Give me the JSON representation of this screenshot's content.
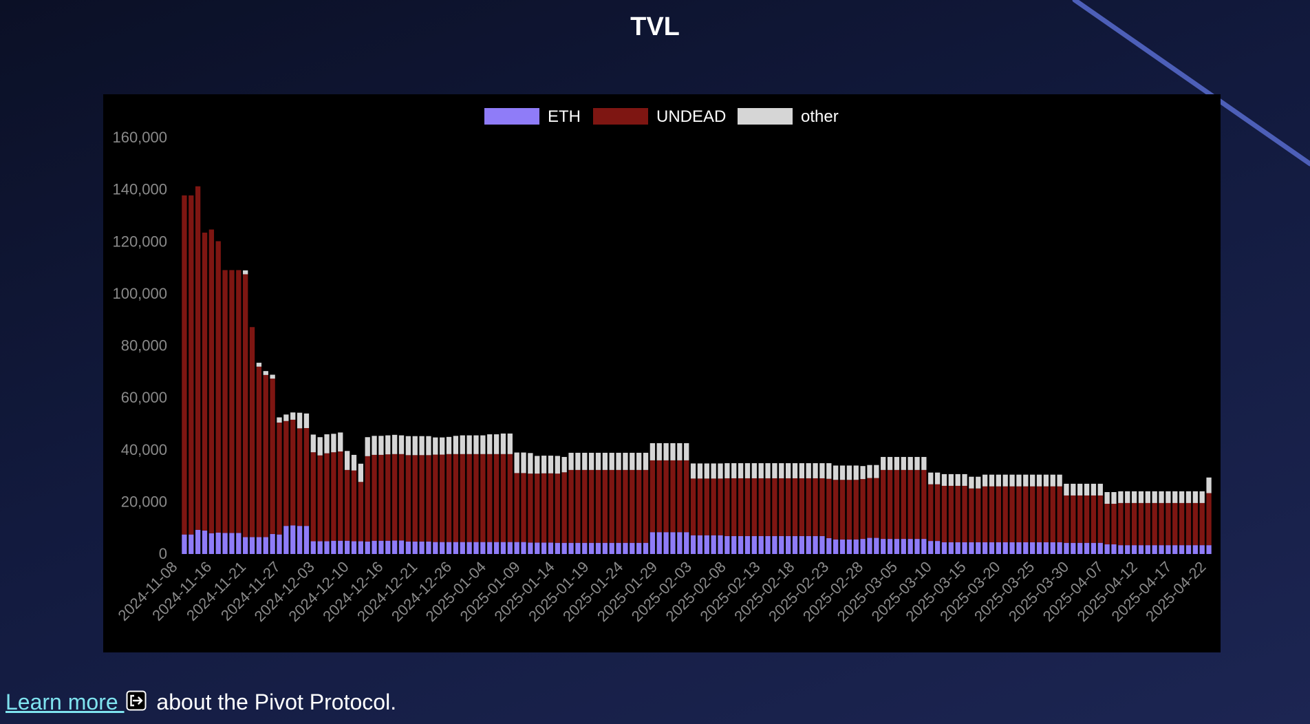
{
  "page": {
    "title": "TVL",
    "footer": {
      "link_text": "Learn more ",
      "suffix": " about the Pivot Protocol."
    }
  },
  "colors": {
    "eth": "#8f7cf8",
    "undead": "#7e1612",
    "other": "#d6d6d6",
    "tick": "#8a8a8a",
    "link": "#7fe3ef"
  },
  "icons": {
    "footer_link_icon": "external-link-icon"
  },
  "chart_data": {
    "type": "bar",
    "stacked": true,
    "legend_position": "top",
    "grid": false,
    "ylim": [
      0,
      160000
    ],
    "yticks": [
      0,
      20000,
      40000,
      60000,
      80000,
      100000,
      120000,
      140000,
      160000
    ],
    "ytick_labels": [
      "0",
      "20,000",
      "40,000",
      "60,000",
      "80,000",
      "100,000",
      "120,000",
      "140,000",
      "160,000"
    ],
    "xtick_labels": [
      "2024-11-08",
      "2024-11-16",
      "2024-11-21",
      "2024-11-27",
      "2024-12-03",
      "2024-12-10",
      "2024-12-16",
      "2024-12-21",
      "2024-12-26",
      "2025-01-04",
      "2025-01-09",
      "2025-01-14",
      "2025-01-19",
      "2025-01-24",
      "2025-01-29",
      "2025-02-03",
      "2025-02-08",
      "2025-02-13",
      "2025-02-18",
      "2025-02-23",
      "2025-02-28",
      "2025-03-05",
      "2025-03-10",
      "2025-03-15",
      "2025-03-20",
      "2025-03-25",
      "2025-03-30",
      "2025-04-07",
      "2025-04-12",
      "2025-04-17",
      "2025-04-22"
    ],
    "series": [
      {
        "name": "ETH",
        "color": "#8f7cf8",
        "values": [
          7500,
          7500,
          9300,
          9000,
          8000,
          8200,
          8100,
          8100,
          8100,
          6500,
          6500,
          6500,
          6500,
          7700,
          7500,
          10800,
          11000,
          10800,
          10800,
          4900,
          4900,
          4900,
          5100,
          5100,
          5100,
          4900,
          4900,
          4800,
          5100,
          5100,
          5100,
          5200,
          5200,
          4800,
          4800,
          4800,
          4800,
          4600,
          4600,
          4600,
          4600,
          4600,
          4600,
          4600,
          4600,
          4600,
          4600,
          4600,
          4600,
          4600,
          4600,
          4400,
          4400,
          4400,
          4400,
          4300,
          4300,
          4300,
          4300,
          4300,
          4300,
          4300,
          4300,
          4300,
          4300,
          4300,
          4300,
          4300,
          4300,
          8400,
          8400,
          8400,
          8400,
          8400,
          8400,
          7200,
          7200,
          7200,
          7200,
          7200,
          6900,
          6900,
          6900,
          6900,
          6900,
          6900,
          6900,
          6900,
          6900,
          6900,
          6900,
          6900,
          6900,
          6900,
          6900,
          6100,
          5600,
          5600,
          5600,
          5600,
          5800,
          6200,
          6200,
          5800,
          5800,
          5800,
          5800,
          5800,
          5800,
          5800,
          5000,
          5000,
          4500,
          4500,
          4500,
          4500,
          4500,
          4500,
          4500,
          4500,
          4500,
          4500,
          4500,
          4500,
          4500,
          4500,
          4500,
          4500,
          4500,
          4500,
          4300,
          4300,
          4300,
          4300,
          4300,
          4300,
          3700,
          3700,
          3400,
          3400,
          3400,
          3400,
          3400,
          3400,
          3400,
          3400,
          3400,
          3400,
          3400,
          3400,
          3400,
          3400
        ]
      },
      {
        "name": "UNDEAD",
        "color": "#7e1612",
        "values": [
          130300,
          130300,
          132000,
          114500,
          116700,
          112000,
          101000,
          101000,
          101000,
          101000,
          80700,
          65500,
          62300,
          59700,
          43000,
          40300,
          40600,
          37500,
          37600,
          34200,
          33000,
          33800,
          34000,
          34300,
          27200,
          27200,
          22800,
          32800,
          33000,
          33000,
          33200,
          33200,
          33200,
          33200,
          33200,
          33200,
          33200,
          33600,
          33600,
          33800,
          33800,
          33800,
          33800,
          33800,
          33800,
          33800,
          33800,
          33800,
          33800,
          26500,
          26500,
          26500,
          26500,
          26600,
          26600,
          26600,
          27100,
          28000,
          28000,
          28000,
          28000,
          28000,
          28000,
          28000,
          28000,
          28000,
          28000,
          28000,
          28000,
          27600,
          27600,
          27600,
          27600,
          27600,
          27600,
          21800,
          21800,
          21800,
          21800,
          21800,
          22200,
          22200,
          22200,
          22200,
          22200,
          22200,
          22200,
          22200,
          22200,
          22200,
          22200,
          22200,
          22200,
          22200,
          22200,
          22800,
          22900,
          22900,
          22900,
          22900,
          23000,
          23000,
          23000,
          26500,
          26500,
          26500,
          26500,
          26500,
          26500,
          26500,
          21800,
          21800,
          21700,
          21700,
          21700,
          21700,
          20700,
          20700,
          21500,
          21500,
          21500,
          21500,
          21500,
          21500,
          21500,
          21500,
          21500,
          21500,
          21500,
          21500,
          18200,
          18200,
          18200,
          18200,
          18200,
          18200,
          15600,
          15600,
          16200,
          16200,
          16200,
          16200,
          16200,
          16200,
          16200,
          16200,
          16200,
          16200,
          16200,
          16200,
          16200,
          20000
        ]
      },
      {
        "name": "other",
        "color": "#d6d6d6",
        "values": [
          0,
          0,
          0,
          0,
          0,
          0,
          0,
          0,
          0,
          1500,
          0,
          1500,
          1500,
          1500,
          2000,
          2500,
          2800,
          6000,
          5600,
          6800,
          7000,
          7300,
          7100,
          7300,
          7300,
          6000,
          7000,
          7300,
          7300,
          7300,
          7300,
          7400,
          7200,
          7300,
          7300,
          7300,
          7300,
          6600,
          6600,
          6600,
          7000,
          7200,
          7200,
          7200,
          7200,
          7600,
          7600,
          7900,
          7900,
          7900,
          7900,
          7900,
          6800,
          6800,
          6800,
          6800,
          5900,
          6600,
          6600,
          6600,
          6600,
          6600,
          6600,
          6600,
          6600,
          6600,
          6600,
          6600,
          6600,
          6600,
          6600,
          6600,
          6600,
          6600,
          6600,
          5800,
          5800,
          5800,
          5800,
          5800,
          5800,
          5800,
          5800,
          5800,
          5800,
          5800,
          5800,
          5800,
          5800,
          5800,
          5800,
          5800,
          5800,
          5800,
          5800,
          6000,
          5500,
          5500,
          5500,
          5500,
          5000,
          5000,
          5000,
          5000,
          5000,
          5000,
          5000,
          5000,
          5000,
          5000,
          4500,
          4500,
          4500,
          4500,
          4500,
          4500,
          4500,
          4500,
          4500,
          4500,
          4500,
          4500,
          4500,
          4500,
          4500,
          4500,
          4500,
          4500,
          4500,
          4500,
          4500,
          4500,
          4500,
          4500,
          4500,
          4500,
          4500,
          4500,
          4500,
          4500,
          4500,
          4500,
          4500,
          4500,
          4500,
          4500,
          4500,
          4500,
          4500,
          4500,
          4500,
          6000
        ]
      }
    ]
  }
}
